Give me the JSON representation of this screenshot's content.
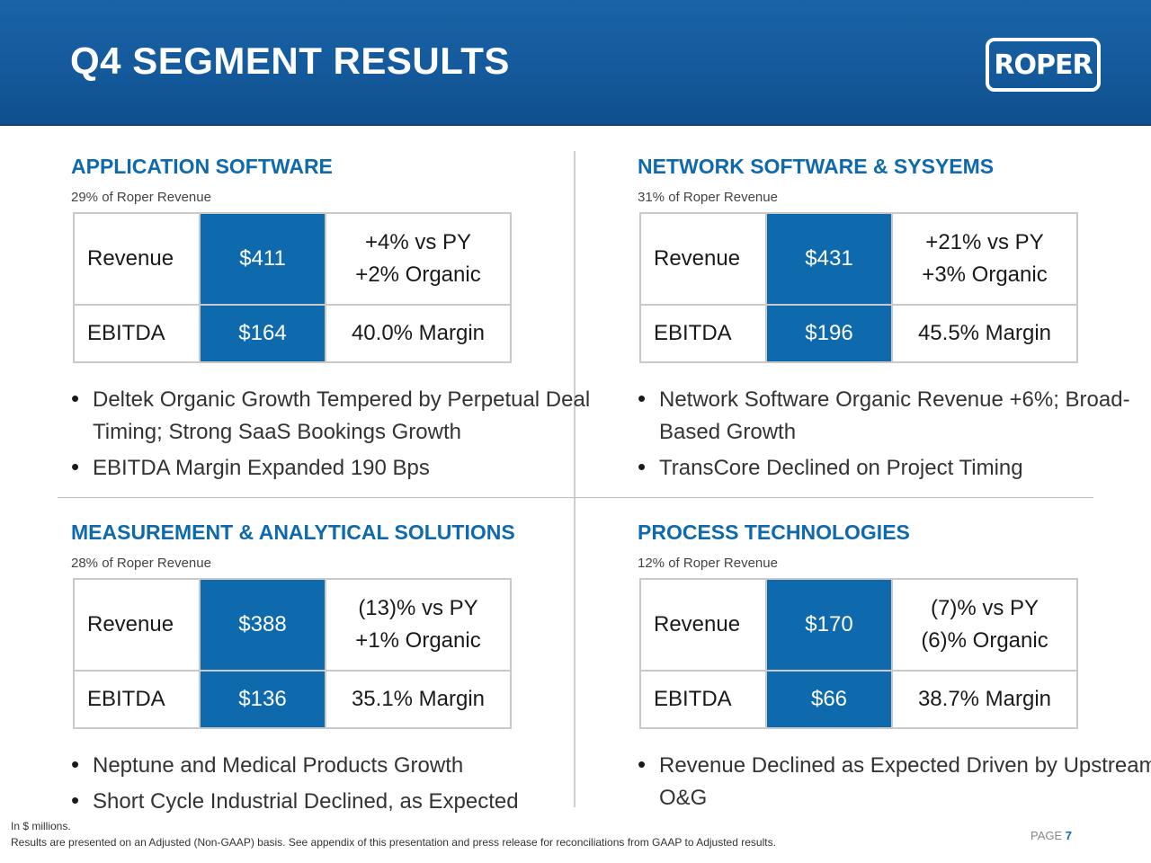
{
  "header": {
    "title": "Q4 SEGMENT RESULTS",
    "logo_text": "ROPER"
  },
  "segments": [
    {
      "title": "APPLICATION SOFTWARE",
      "subtitle": "29% of Roper Revenue",
      "revenue_label": "Revenue",
      "revenue_value": "$411",
      "revenue_note_1": "+4% vs PY",
      "revenue_note_2": "+2% Organic",
      "ebitda_label": "EBITDA",
      "ebitda_value": "$164",
      "ebitda_note": "40.0% Margin",
      "bullets": [
        "Deltek Organic Growth Tempered by Perpetual Deal Timing; Strong SaaS Bookings Growth",
        "EBITDA Margin Expanded 190 Bps"
      ]
    },
    {
      "title": "NETWORK SOFTWARE & SYSYEMS",
      "subtitle": "31% of Roper Revenue",
      "revenue_label": "Revenue",
      "revenue_value": "$431",
      "revenue_note_1": "+21% vs PY",
      "revenue_note_2": "+3% Organic",
      "ebitda_label": "EBITDA",
      "ebitda_value": "$196",
      "ebitda_note": "45.5% Margin",
      "bullets": [
        "Network Software Organic Revenue +6%; Broad-Based Growth",
        "TransCore Declined on Project Timing"
      ]
    },
    {
      "title": "MEASUREMENT & ANALYTICAL SOLUTIONS",
      "subtitle": "28% of Roper Revenue",
      "revenue_label": "Revenue",
      "revenue_value": "$388",
      "revenue_note_1": "(13)% vs PY",
      "revenue_note_2": "+1% Organic",
      "ebitda_label": "EBITDA",
      "ebitda_value": "$136",
      "ebitda_note": "35.1% Margin",
      "bullets": [
        "Neptune and Medical Products Growth",
        "Short Cycle Industrial Declined, as Expected"
      ]
    },
    {
      "title": "PROCESS TECHNOLOGIES",
      "subtitle": "12% of Roper Revenue",
      "revenue_label": "Revenue",
      "revenue_value": "$170",
      "revenue_note_1": "(7)% vs PY",
      "revenue_note_2": "(6)% Organic",
      "ebitda_label": "EBITDA",
      "ebitda_value": "$66",
      "ebitda_note": "38.7% Margin",
      "bullets": [
        "Revenue Declined as Expected Driven by Upstream O&G"
      ]
    }
  ],
  "footer": {
    "note_1": "In $ millions.",
    "note_2": "Results are presented on an Adjusted (Non-GAAP) basis. See appendix of this presentation and press release for reconciliations from GAAP to Adjusted results.",
    "page_label": "PAGE",
    "page_number": "7"
  }
}
